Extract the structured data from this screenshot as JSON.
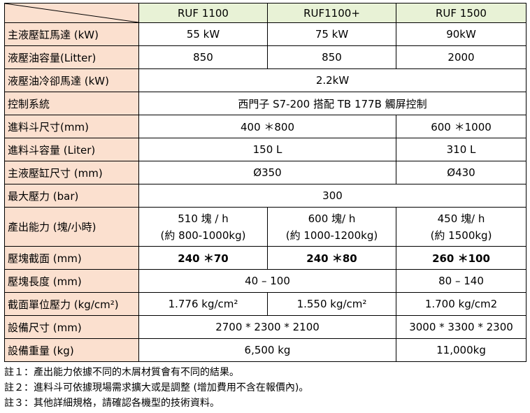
{
  "table": {
    "header": [
      "RUF 1100",
      "RUF1100+",
      "RUF 1500"
    ],
    "rows": [
      {
        "label": "主液壓缸馬達 (kW)",
        "values": [
          "55 kW",
          "75 kW",
          "90kW"
        ]
      },
      {
        "label": "液壓油容量(Litter)",
        "values": [
          "850",
          "850",
          "2000"
        ]
      },
      {
        "label": "液壓油冷卻馬達 (kW)",
        "values": [
          "2.2kW"
        ]
      },
      {
        "label": "控制系統",
        "values": [
          "西門子 S7-200 搭配 TB 177B 觸屏控制"
        ]
      },
      {
        "label": "進料斗尺寸(mm)",
        "values": [
          "400 ＊800",
          "600 ＊1000"
        ]
      },
      {
        "label": "進料斗容量 (Liter)",
        "values": [
          "150 L",
          "310 L"
        ]
      },
      {
        "label": "主液壓缸尺寸 (mm)",
        "values": [
          "Ø350",
          "Ø430"
        ]
      },
      {
        "label": "最大壓力 (bar)",
        "values": [
          "300"
        ]
      },
      {
        "label": "產出能力 (塊/小時)",
        "values": [
          {
            "line1": "510 塊 / h",
            "line2": "(約 800-1000kg)"
          },
          {
            "line1": "600 塊/ h",
            "line2": "(約 1000-1200kg)"
          },
          {
            "line1": "450 塊/ h",
            "line2": "(約 1500kg)"
          }
        ]
      },
      {
        "label": "壓塊截面 (mm)",
        "values": [
          "240 ＊70",
          "240 ＊80",
          "260 ＊100"
        ]
      },
      {
        "label": "壓塊長度 (mm)",
        "values": [
          "40 – 100",
          "80 – 140"
        ]
      },
      {
        "label": "截面單位壓力 (kg/cm²)",
        "values": [
          "1.776 kg/cm²",
          "1.550 kg/cm²",
          "1.700 kg/cm2"
        ]
      },
      {
        "label": "設備尺寸 (mm)",
        "values": [
          "2700 * 2300 * 2100",
          "3000 * 3300 * 2300"
        ]
      },
      {
        "label": "設備重量 (kg)",
        "values": [
          "6,500 kg",
          "11,000kg"
        ]
      }
    ]
  },
  "notes": [
    "註１：產出能力依據不同的木屑材質會有不同的結果。",
    "註２：進料斗可依據現場需求擴大或是調整 (增加費用不含在報價內)。",
    "註３：其他詳細規格，請確認各機型的技術資料。"
  ],
  "colors": {
    "label_bg": "#fbe0cf",
    "header_bg": "#e8f2d6",
    "border": "#000000"
  }
}
